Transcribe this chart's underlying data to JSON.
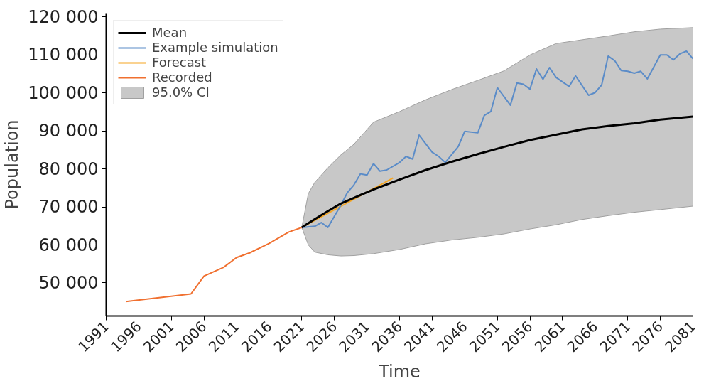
{
  "chart_data": {
    "type": "line",
    "xlabel": "Time",
    "ylabel": "Population",
    "xlim": [
      1991,
      2081
    ],
    "ylim": [
      41300,
      121000
    ],
    "xticks": [
      1991,
      1996,
      2001,
      2006,
      2011,
      2016,
      2021,
      2026,
      2031,
      2036,
      2041,
      2046,
      2051,
      2056,
      2061,
      2066,
      2071,
      2076,
      2081
    ],
    "yticks": [
      {
        "value": 50000,
        "label": "50 000"
      },
      {
        "value": 60000,
        "label": "60 000"
      },
      {
        "value": 70000,
        "label": "70 000"
      },
      {
        "value": 80000,
        "label": "80 000"
      },
      {
        "value": 90000,
        "label": "90 000"
      },
      {
        "value": 100000,
        "label": "100 000"
      },
      {
        "value": 110000,
        "label": "110 000"
      },
      {
        "value": 120000,
        "label": "120 000"
      }
    ],
    "grid": false,
    "legend": "top left",
    "series": [
      {
        "name": "Mean",
        "color": "#000000",
        "x": [
          2021,
          2022,
          2023,
          2025,
          2027,
          2029,
          2032,
          2036,
          2040,
          2044,
          2048,
          2052,
          2056,
          2060,
          2064,
          2068,
          2072,
          2076,
          2081
        ],
        "values": [
          64600,
          65700,
          66800,
          68900,
          70900,
          72400,
          74600,
          77200,
          79700,
          81900,
          83900,
          85800,
          87600,
          89000,
          90400,
          91300,
          92000,
          93000,
          93800
        ],
        "lower": [
          64600,
          60000,
          58100,
          57400,
          57100,
          57200,
          57700,
          58800,
          60300,
          61300,
          62000,
          62900,
          64200,
          65300,
          66700,
          67700,
          68600,
          69300,
          70200
        ],
        "upper": [
          64600,
          73500,
          76500,
          80300,
          83700,
          86500,
          92300,
          95100,
          98200,
          100900,
          103300,
          105800,
          110000,
          113000,
          114000,
          115000,
          116100,
          116800,
          117200
        ]
      },
      {
        "name": "Example simulation",
        "color": "#5b8cc8",
        "x": [
          2021,
          2023,
          2024,
          2025,
          2027,
          2028,
          2029,
          2030,
          2031,
          2032,
          2033,
          2034,
          2036,
          2037,
          2038,
          2039,
          2041,
          2042,
          2043,
          2045,
          2046,
          2048,
          2049,
          2050,
          2051,
          2053,
          2054,
          2055,
          2056,
          2057,
          2058,
          2059,
          2060,
          2062,
          2063,
          2065,
          2066,
          2067,
          2068,
          2069,
          2070,
          2071,
          2072,
          2073,
          2074,
          2076,
          2077,
          2078,
          2079,
          2080,
          2081
        ],
        "values": [
          64600,
          64900,
          65900,
          64600,
          70500,
          73800,
          75800,
          78700,
          78400,
          81400,
          79400,
          79700,
          81700,
          83300,
          82600,
          88900,
          84400,
          83300,
          81700,
          85900,
          89900,
          89500,
          94100,
          95100,
          101400,
          96800,
          102600,
          102300,
          101000,
          106300,
          103600,
          106700,
          104100,
          101700,
          104500,
          99400,
          100100,
          102100,
          109700,
          108500,
          105900,
          105700,
          105200,
          105700,
          103700,
          110000,
          110000,
          108700,
          110300,
          111000,
          109000
        ]
      },
      {
        "name": "Forecast",
        "color": "#f5a623",
        "x": [
          2021,
          2035
        ],
        "values": [
          64600,
          77600
        ]
      },
      {
        "name": "Recorded",
        "color": "#f07030",
        "x": [
          1994,
          2004,
          2006,
          2009,
          2011,
          2013,
          2016,
          2019,
          2021
        ],
        "values": [
          45100,
          47100,
          51800,
          54100,
          56700,
          57900,
          60400,
          63400,
          64600
        ]
      },
      {
        "name": "95.0% CI",
        "type": "area",
        "color": "#c8c8c8"
      }
    ]
  }
}
